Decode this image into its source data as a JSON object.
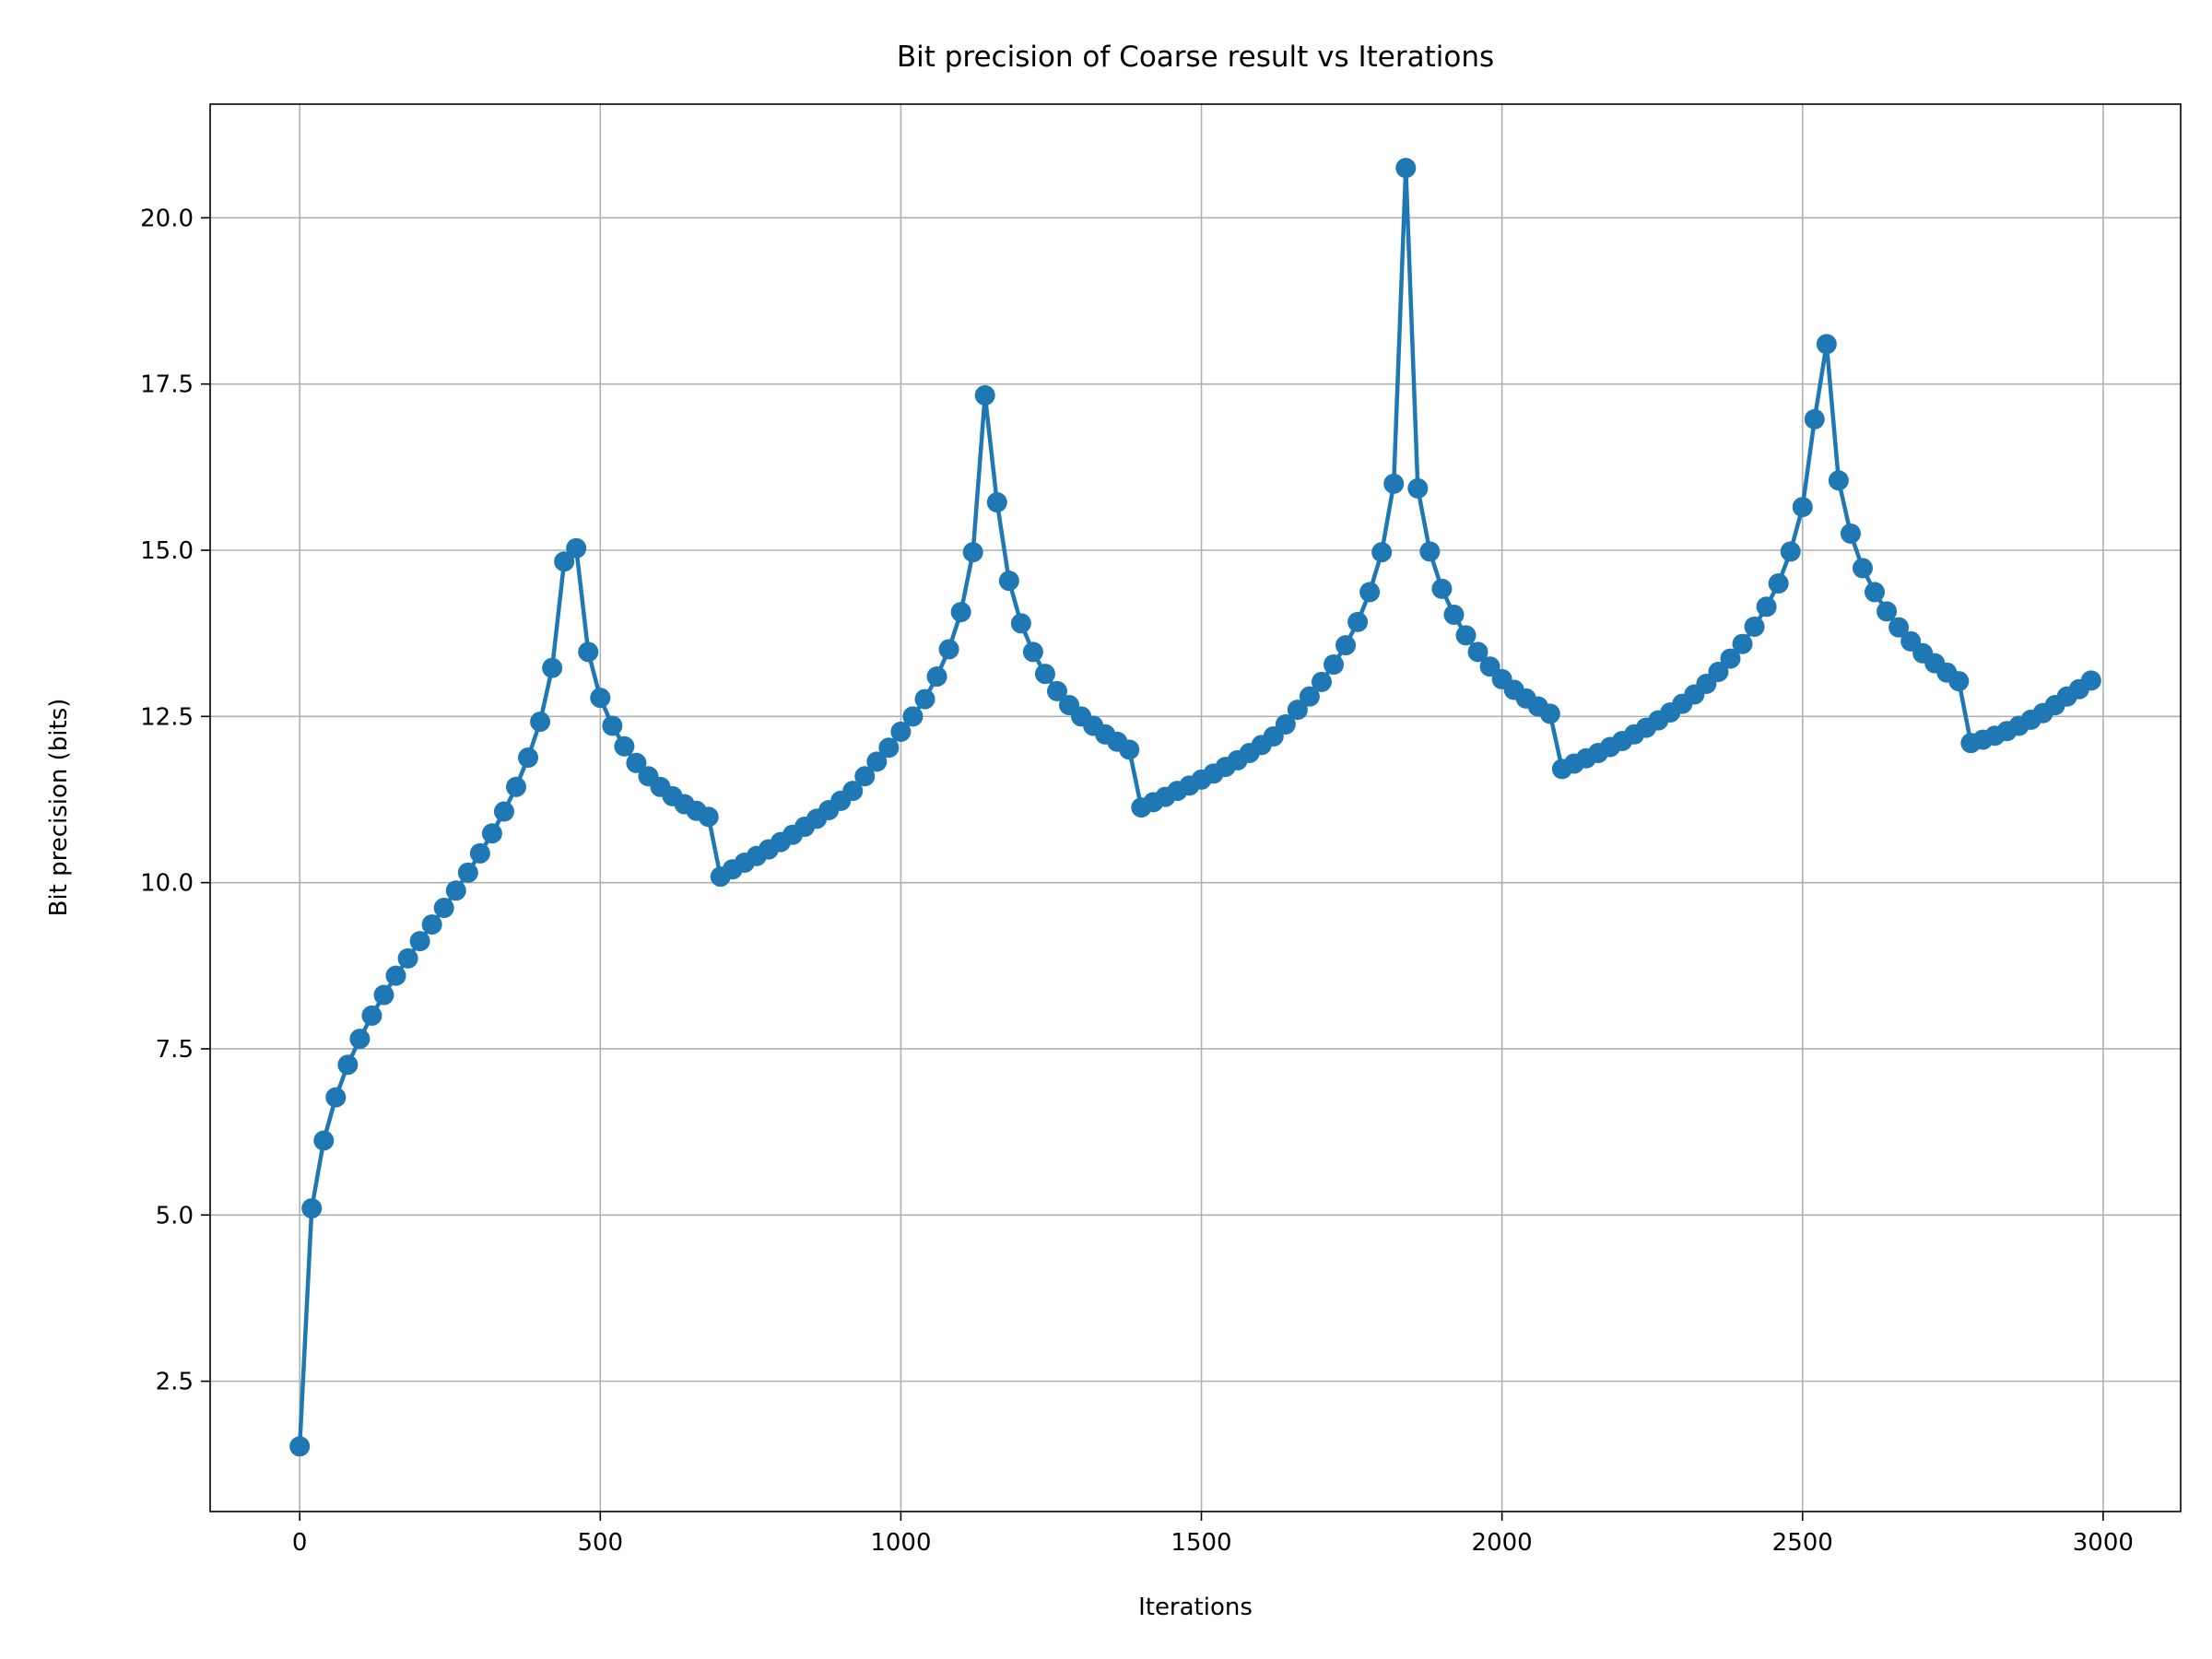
{
  "chart_data": {
    "type": "line",
    "title": "Bit precision of Coarse result vs Iterations",
    "xlabel": "Iterations",
    "ylabel": "Bit precision (bits)",
    "color": "#1f77b4",
    "marker": true,
    "grid": true,
    "x": [
      0,
      20,
      40,
      60,
      80,
      100,
      120,
      140,
      160,
      180,
      200,
      220,
      240,
      260,
      280,
      300,
      320,
      340,
      360,
      380,
      400,
      420,
      440,
      460,
      480,
      500,
      520,
      540,
      560,
      580,
      600,
      620,
      640,
      660,
      680,
      700,
      720,
      740,
      760,
      780,
      800,
      820,
      840,
      860,
      880,
      900,
      920,
      940,
      960,
      980,
      1000,
      1020,
      1040,
      1060,
      1080,
      1100,
      1120,
      1140,
      1160,
      1180,
      1200,
      1220,
      1240,
      1260,
      1280,
      1300,
      1320,
      1340,
      1360,
      1380,
      1400,
      1420,
      1440,
      1460,
      1480,
      1500,
      1520,
      1540,
      1560,
      1580,
      1600,
      1620,
      1640,
      1660,
      1680,
      1700,
      1720,
      1740,
      1760,
      1780,
      1800,
      1820,
      1840,
      1860,
      1880,
      1900,
      1920,
      1940,
      1960,
      1980,
      2000,
      2020,
      2040,
      2060,
      2080,
      2100,
      2120,
      2140,
      2160,
      2180,
      2200,
      2220,
      2240,
      2260,
      2280,
      2300,
      2320,
      2340,
      2360,
      2380,
      2400,
      2420,
      2440,
      2460,
      2480,
      2500,
      2520,
      2540,
      2560,
      2580,
      2600,
      2620,
      2640,
      2660,
      2680,
      2700,
      2720,
      2740,
      2760,
      2780,
      2800,
      2820,
      2840,
      2860,
      2880,
      2900,
      2920,
      2940,
      2960,
      2980
    ],
    "values": [
      1.52,
      5.1,
      6.12,
      6.77,
      7.26,
      7.65,
      8.0,
      8.31,
      8.6,
      8.86,
      9.12,
      9.37,
      9.62,
      9.88,
      10.15,
      10.44,
      10.74,
      11.07,
      11.44,
      11.88,
      12.42,
      13.23,
      14.83,
      15.03,
      13.47,
      12.78,
      12.36,
      12.05,
      11.8,
      11.6,
      11.44,
      11.3,
      11.18,
      11.08,
      10.99,
      10.09,
      10.2,
      10.3,
      10.4,
      10.5,
      10.61,
      10.72,
      10.84,
      10.96,
      11.09,
      11.23,
      11.38,
      11.6,
      11.82,
      12.03,
      12.27,
      12.5,
      12.76,
      13.1,
      13.51,
      14.07,
      14.97,
      17.33,
      15.72,
      14.54,
      13.9,
      13.47,
      13.14,
      12.88,
      12.67,
      12.5,
      12.36,
      12.23,
      12.12,
      12.0,
      11.13,
      11.21,
      11.29,
      11.38,
      11.46,
      11.55,
      11.64,
      11.74,
      11.84,
      11.95,
      12.07,
      12.2,
      12.38,
      12.6,
      12.8,
      13.02,
      13.28,
      13.57,
      13.92,
      14.37,
      14.97,
      16.0,
      20.75,
      15.93,
      14.98,
      14.42,
      14.03,
      13.72,
      13.47,
      13.25,
      13.06,
      12.9,
      12.77,
      12.65,
      12.54,
      11.71,
      11.79,
      11.87,
      11.95,
      12.04,
      12.13,
      12.23,
      12.33,
      12.44,
      12.56,
      12.69,
      12.83,
      12.99,
      13.17,
      13.37,
      13.59,
      13.85,
      14.15,
      14.5,
      14.98,
      15.65,
      16.97,
      18.1,
      16.05,
      15.25,
      14.73,
      14.37,
      14.08,
      13.84,
      13.63,
      13.45,
      13.3,
      13.16,
      13.03,
      12.1,
      12.15,
      12.21,
      12.28,
      12.36,
      12.45,
      12.55,
      12.67,
      12.8,
      12.91,
      13.04
    ],
    "xlim": [
      -149,
      3129
    ],
    "ylim": [
      0.54,
      21.71
    ],
    "xticks": [
      0,
      500,
      1000,
      1500,
      2000,
      2500,
      3000
    ],
    "yticks": [
      2.5,
      {
        "value": 5,
        "label": "5.0"
      },
      7.5,
      {
        "value": 10,
        "label": "10.0"
      },
      12.5,
      {
        "value": 15,
        "label": "15.0"
      },
      17.5,
      {
        "value": 20,
        "label": "20.0"
      }
    ]
  }
}
